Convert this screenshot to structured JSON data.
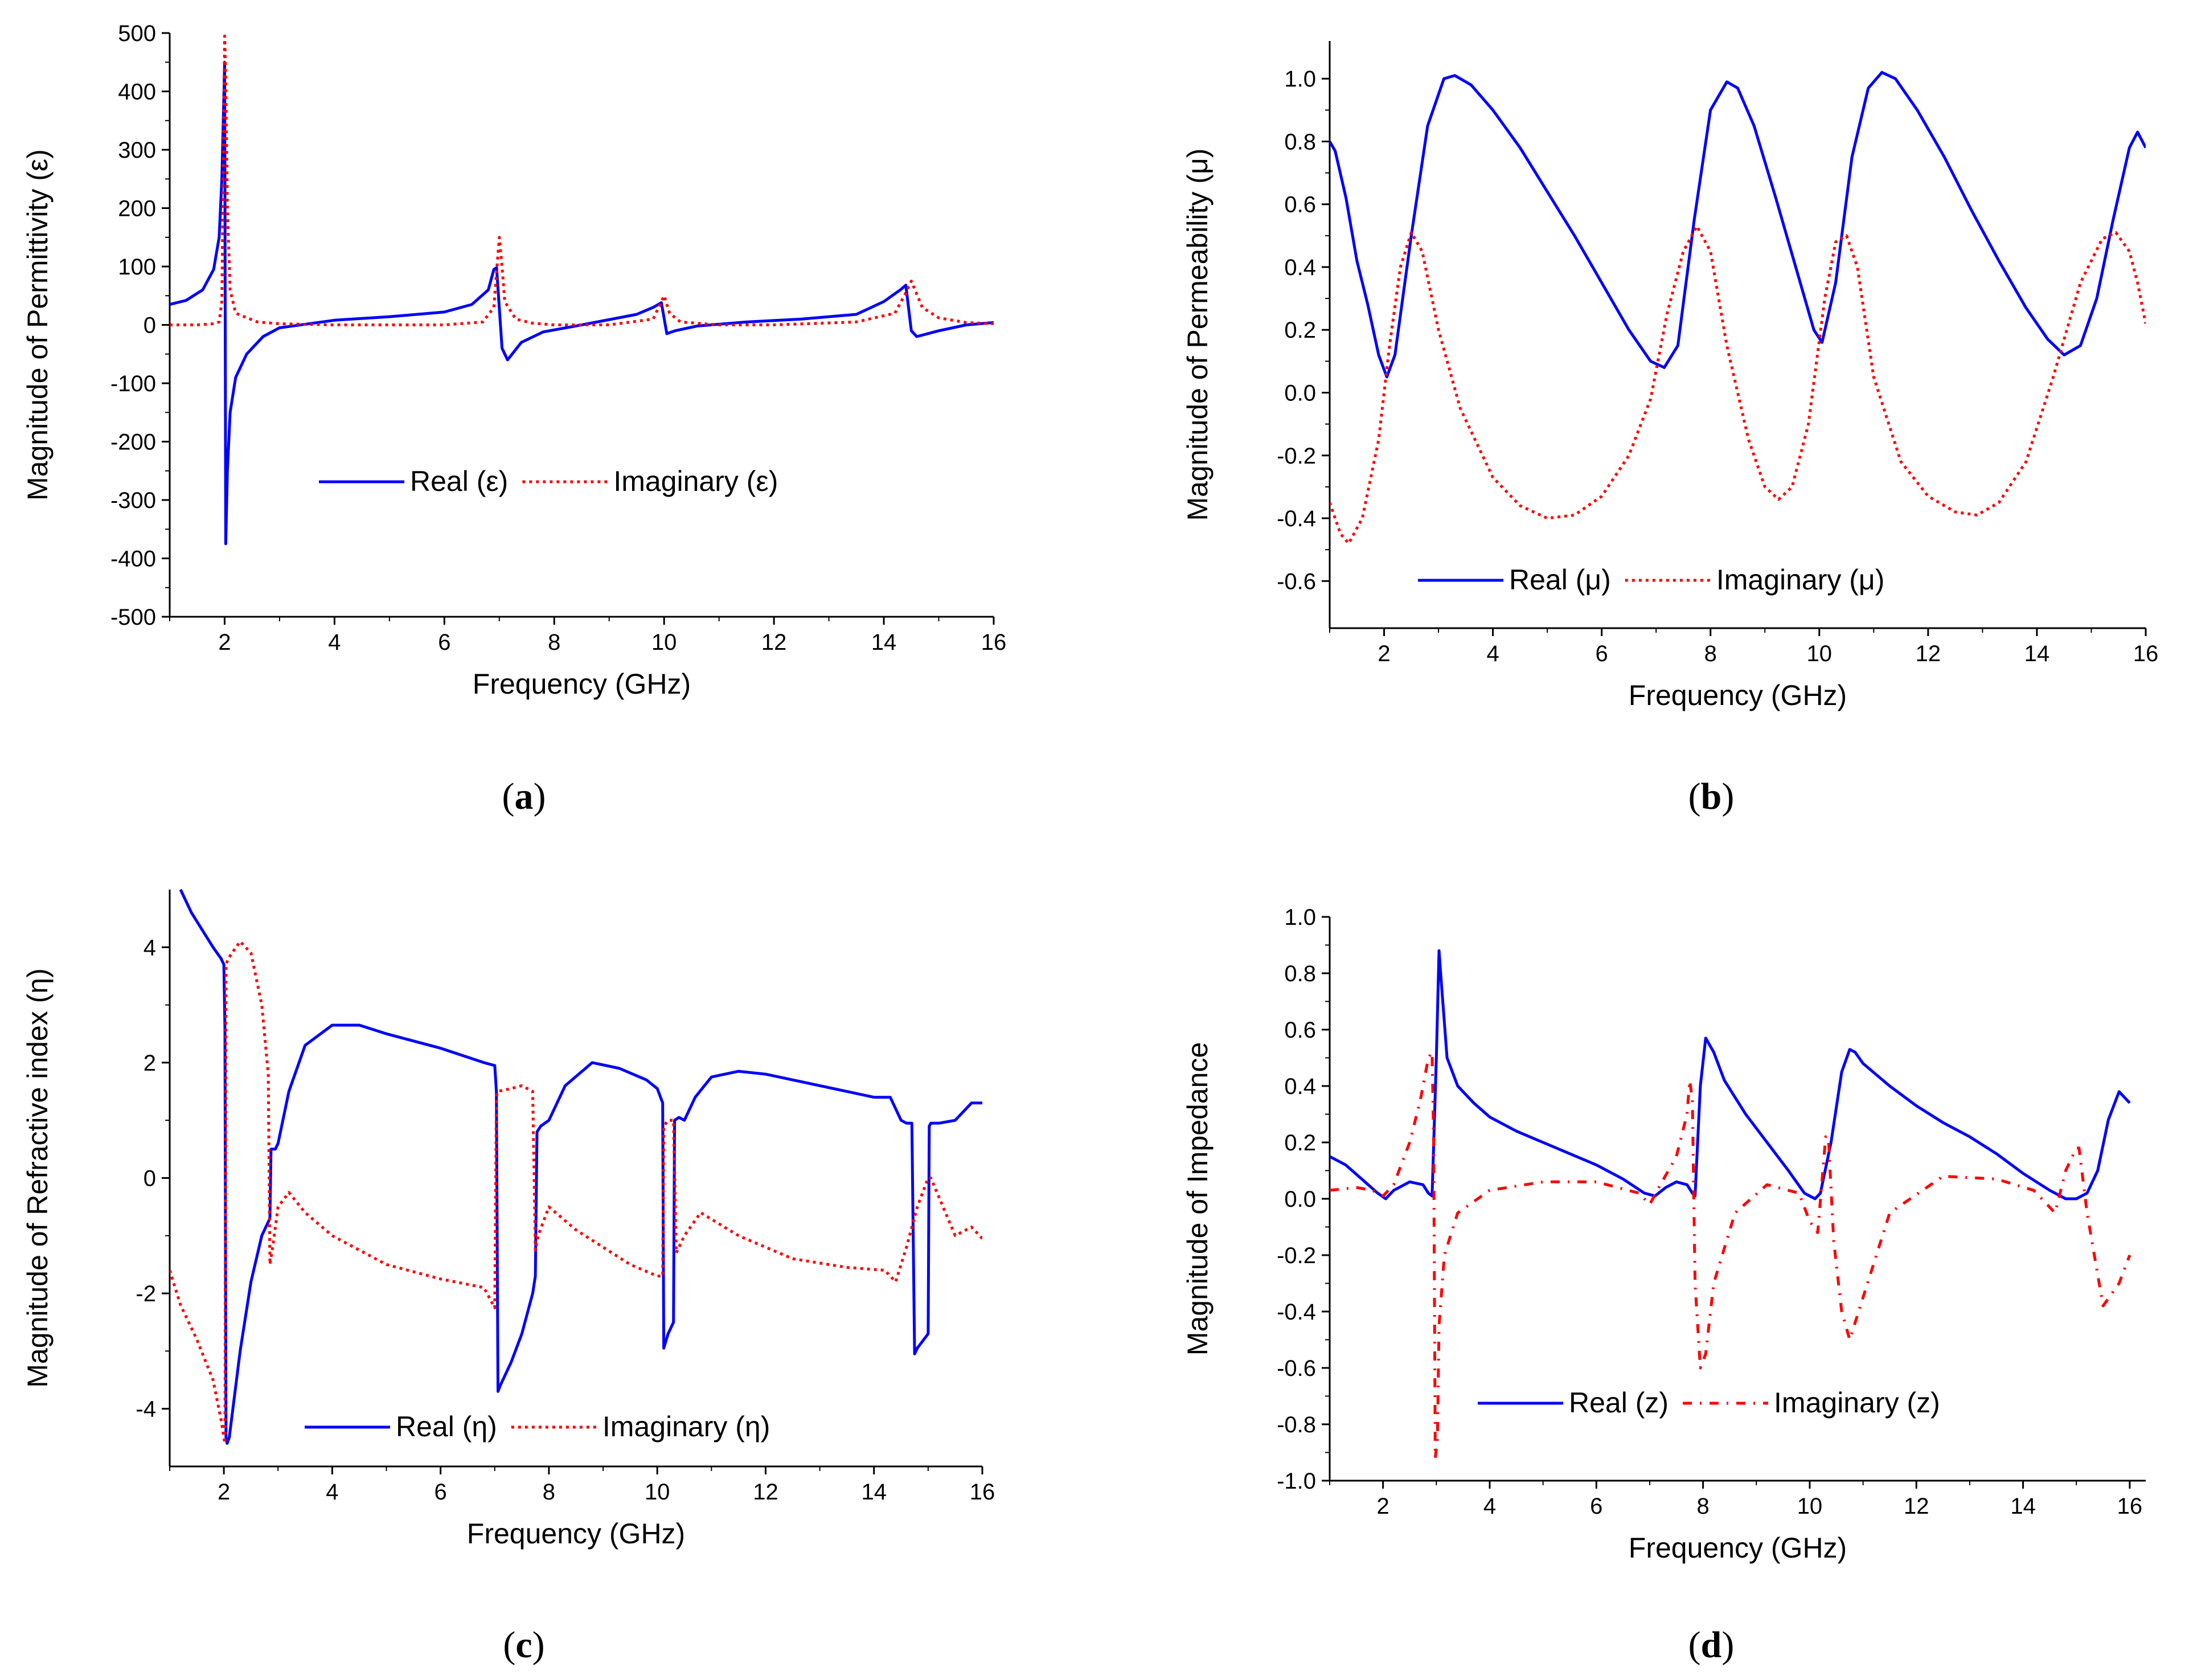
{
  "colors": {
    "real": "#0000ff",
    "imaginary": "#ff0000",
    "axis": "#000000"
  },
  "chart_data": [
    {
      "id": "a",
      "type": "line",
      "caption_letter": "a",
      "xlabel": "Frequency (GHz)",
      "ylabel": "Magnitude of Permittivity (ε)",
      "xlim": [
        1,
        16
      ],
      "ylim": [
        -500,
        500
      ],
      "xticks": [
        2,
        4,
        6,
        8,
        10,
        12,
        14,
        16
      ],
      "yticks": [
        -500,
        -400,
        -300,
        -200,
        -100,
        0,
        100,
        200,
        300,
        400,
        500
      ],
      "legend_location": "center",
      "series": [
        {
          "name": "Real (ε)",
          "style": "solid",
          "color": "#0000ff",
          "x": [
            1,
            1.3,
            1.6,
            1.8,
            1.9,
            1.95,
            2.0,
            2.02,
            2.05,
            2.1,
            2.2,
            2.4,
            2.7,
            3.0,
            4,
            5,
            6,
            6.5,
            6.8,
            6.9,
            6.95,
            7.05,
            7.15,
            7.4,
            7.8,
            8.5,
            9.5,
            9.8,
            9.95,
            10.05,
            10.2,
            10.6,
            11.5,
            12.5,
            13.5,
            14.0,
            14.3,
            14.4,
            14.5,
            14.6,
            15.0,
            15.5,
            16
          ],
          "y": [
            35,
            42,
            60,
            95,
            150,
            250,
            450,
            -375,
            -250,
            -150,
            -90,
            -50,
            -20,
            -5,
            8,
            14,
            22,
            35,
            60,
            95,
            98,
            -40,
            -60,
            -30,
            -12,
            0,
            18,
            30,
            38,
            -15,
            -10,
            -2,
            5,
            10,
            18,
            40,
            60,
            68,
            -10,
            -20,
            -10,
            0,
            4
          ]
        },
        {
          "name": "Imaginary (ε)",
          "style": "dotted",
          "color": "#ff0000",
          "x": [
            1,
            1.5,
            1.8,
            1.9,
            1.95,
            2.0,
            2.02,
            2.05,
            2.1,
            2.2,
            2.6,
            3.0,
            4,
            5,
            6,
            6.7,
            6.9,
            7.0,
            7.05,
            7.1,
            7.3,
            7.6,
            8,
            9,
            9.8,
            10.0,
            10.1,
            10.3,
            11,
            12,
            13.5,
            14.2,
            14.4,
            14.5,
            14.7,
            15.0,
            15.5,
            16
          ],
          "y": [
            0,
            0,
            2,
            5,
            40,
            495,
            420,
            200,
            60,
            20,
            5,
            2,
            0,
            0,
            0,
            5,
            30,
            150,
            100,
            40,
            10,
            3,
            0,
            0,
            10,
            50,
            20,
            5,
            0,
            0,
            5,
            20,
            55,
            75,
            30,
            12,
            4,
            2
          ]
        }
      ]
    },
    {
      "id": "b",
      "type": "line",
      "caption_letter": "b",
      "xlabel": "Frequency (GHz)",
      "ylabel": "Magnitude of Permeability (μ)",
      "xlim": [
        1,
        16
      ],
      "ylim": [
        -0.75,
        1.12
      ],
      "xticks": [
        2,
        4,
        6,
        8,
        10,
        12,
        14,
        16
      ],
      "yticks": [
        -0.6,
        -0.4,
        -0.2,
        0.0,
        0.2,
        0.4,
        0.6,
        0.8,
        1.0
      ],
      "ytick_labels": [
        "-0.6",
        "-0.4",
        "-0.2",
        "0.0",
        "0.2",
        "0.4",
        "0.6",
        "0.8",
        "1.0"
      ],
      "legend_location": "lower center",
      "series": [
        {
          "name": "Real (μ)",
          "style": "solid",
          "color": "#0000ff",
          "x": [
            1,
            1.1,
            1.3,
            1.5,
            1.7,
            1.9,
            2.05,
            2.2,
            2.5,
            2.8,
            3.1,
            3.3,
            3.6,
            4.0,
            4.5,
            5.0,
            5.5,
            6.0,
            6.5,
            6.9,
            7.15,
            7.4,
            7.7,
            8.0,
            8.3,
            8.5,
            8.8,
            9.2,
            9.6,
            9.9,
            10.05,
            10.3,
            10.6,
            10.9,
            11.15,
            11.4,
            11.8,
            12.3,
            12.8,
            13.3,
            13.8,
            14.2,
            14.5,
            14.8,
            15.1,
            15.4,
            15.7,
            15.85,
            16
          ],
          "y": [
            0.8,
            0.77,
            0.62,
            0.42,
            0.28,
            0.12,
            0.05,
            0.12,
            0.5,
            0.85,
            1.0,
            1.01,
            0.98,
            0.9,
            0.78,
            0.64,
            0.5,
            0.35,
            0.2,
            0.1,
            0.08,
            0.15,
            0.55,
            0.9,
            0.99,
            0.97,
            0.85,
            0.62,
            0.38,
            0.2,
            0.16,
            0.35,
            0.75,
            0.97,
            1.02,
            1.0,
            0.9,
            0.75,
            0.58,
            0.42,
            0.27,
            0.17,
            0.12,
            0.15,
            0.3,
            0.55,
            0.78,
            0.83,
            0.78
          ]
        },
        {
          "name": "Imaginary (μ)",
          "style": "dotted",
          "color": "#ff0000",
          "x": [
            1,
            1.2,
            1.35,
            1.6,
            1.9,
            2.1,
            2.3,
            2.5,
            2.7,
            3.0,
            3.4,
            4.0,
            4.5,
            5.0,
            5.5,
            6.0,
            6.5,
            6.9,
            7.2,
            7.5,
            7.75,
            8.0,
            8.3,
            8.7,
            9.0,
            9.25,
            9.5,
            9.8,
            10.1,
            10.3,
            10.5,
            10.7,
            11.0,
            11.5,
            12.0,
            12.5,
            12.9,
            13.3,
            13.8,
            14.3,
            14.8,
            15.2,
            15.45,
            15.7,
            15.85,
            16
          ],
          "y": [
            -0.35,
            -0.45,
            -0.48,
            -0.4,
            -0.15,
            0.15,
            0.4,
            0.51,
            0.45,
            0.2,
            -0.05,
            -0.27,
            -0.36,
            -0.4,
            -0.39,
            -0.33,
            -0.2,
            -0.02,
            0.25,
            0.45,
            0.53,
            0.45,
            0.15,
            -0.15,
            -0.3,
            -0.34,
            -0.3,
            -0.1,
            0.3,
            0.48,
            0.5,
            0.4,
            0.05,
            -0.22,
            -0.33,
            -0.38,
            -0.39,
            -0.35,
            -0.22,
            0.05,
            0.35,
            0.49,
            0.51,
            0.45,
            0.35,
            0.22
          ]
        }
      ]
    },
    {
      "id": "c",
      "type": "line",
      "caption_letter": "c",
      "xlabel": "Frequency (GHz)",
      "ylabel": "Magnitude of Refractive index (η)",
      "xlim": [
        1,
        16
      ],
      "ylim": [
        -5,
        5
      ],
      "xticks": [
        2,
        4,
        6,
        8,
        10,
        12,
        14,
        16
      ],
      "yticks": [
        -4,
        -2,
        0,
        2,
        4
      ],
      "legend_location": "lower center",
      "series": [
        {
          "name": "Real (η)",
          "style": "solid",
          "color": "#0000ff",
          "x": [
            1.2,
            1.4,
            1.6,
            1.8,
            1.95,
            2.0,
            2.02,
            2.04,
            2.06,
            2.1,
            2.3,
            2.5,
            2.7,
            2.85,
            2.87,
            2.9,
            2.95,
            3.0,
            3.2,
            3.5,
            4.0,
            4.5,
            5.0,
            6.0,
            6.8,
            7.0,
            7.03,
            7.06,
            7.1,
            7.3,
            7.5,
            7.7,
            7.75,
            7.78,
            7.85,
            8.0,
            8.3,
            8.8,
            9.3,
            9.8,
            10.0,
            10.1,
            10.12,
            10.2,
            10.25,
            10.3,
            10.32,
            10.4,
            10.5,
            10.7,
            11.0,
            11.5,
            12.0,
            13.0,
            14.0,
            14.3,
            14.5,
            14.6,
            14.65,
            14.7,
            14.75,
            14.8,
            15.0,
            15.02,
            15.05,
            15.2,
            15.5,
            15.8,
            16
          ],
          "y": [
            5.0,
            4.6,
            4.3,
            4.0,
            3.8,
            3.7,
            2.6,
            -4.5,
            -4.6,
            -4.5,
            -3.0,
            -1.8,
            -1.0,
            -0.7,
            0.5,
            0.5,
            0.5,
            0.6,
            1.5,
            2.3,
            2.65,
            2.65,
            2.5,
            2.25,
            2.0,
            1.95,
            1.5,
            -3.7,
            -3.6,
            -3.2,
            -2.7,
            -2.0,
            -1.7,
            0.8,
            0.9,
            1.0,
            1.6,
            2.0,
            1.9,
            1.7,
            1.55,
            1.3,
            -2.95,
            -2.7,
            -2.6,
            -2.5,
            1.0,
            1.05,
            1.0,
            1.4,
            1.75,
            1.85,
            1.8,
            1.6,
            1.4,
            1.4,
            1.0,
            0.95,
            0.95,
            0.95,
            -3.05,
            -2.95,
            -2.7,
            0.9,
            0.95,
            0.95,
            1.0,
            1.3,
            1.3
          ]
        },
        {
          "name": "Imaginary (η)",
          "style": "dotted",
          "color": "#ff0000",
          "x": [
            1.0,
            1.2,
            1.5,
            1.8,
            1.95,
            2.0,
            2.02,
            2.04,
            2.08,
            2.15,
            2.3,
            2.5,
            2.7,
            2.82,
            2.85,
            2.9,
            3.0,
            3.2,
            3.5,
            4.0,
            5.0,
            6.0,
            6.8,
            7.0,
            7.03,
            7.05,
            7.3,
            7.5,
            7.7,
            7.75,
            7.8,
            8.0,
            8.5,
            9.5,
            10.0,
            10.1,
            10.12,
            10.2,
            10.3,
            10.35,
            10.5,
            10.8,
            11.5,
            12.5,
            13.5,
            14.2,
            14.4,
            14.6,
            14.8,
            15.0,
            15.05,
            15.5,
            15.8,
            16
          ],
          "y": [
            -1.6,
            -2.2,
            -2.8,
            -3.5,
            -4.2,
            -4.5,
            -4.6,
            3.7,
            3.8,
            3.9,
            4.1,
            3.9,
            3.0,
            1.8,
            -1.5,
            -1.2,
            -0.5,
            -0.25,
            -0.6,
            -1.0,
            -1.5,
            -1.75,
            -1.9,
            -2.25,
            1.4,
            1.5,
            1.55,
            1.6,
            1.5,
            -1.25,
            -1.0,
            -0.5,
            -0.9,
            -1.5,
            -1.7,
            -1.7,
            0.9,
            1.0,
            1.0,
            -1.3,
            -1.0,
            -0.6,
            -1.0,
            -1.4,
            -1.55,
            -1.6,
            -1.8,
            -1.2,
            -0.5,
            0.0,
            0.0,
            -1.0,
            -0.85,
            -1.05
          ]
        }
      ]
    },
    {
      "id": "d",
      "type": "line",
      "caption_letter": "d",
      "xlabel": "Frequency (GHz)",
      "ylabel": "Magnitude of Impedance",
      "xlim": [
        1,
        16.3
      ],
      "ylim": [
        -1.0,
        1.0
      ],
      "xticks": [
        2,
        4,
        6,
        8,
        10,
        12,
        14,
        16
      ],
      "yticks": [
        -1.0,
        -0.8,
        -0.6,
        -0.4,
        -0.2,
        0.0,
        0.2,
        0.4,
        0.6,
        0.8,
        1.0
      ],
      "ytick_labels": [
        "-1.0",
        "-0.8",
        "-0.6",
        "-0.4",
        "-0.2",
        "0.0",
        "0.2",
        "0.4",
        "0.6",
        "0.8",
        "1.0"
      ],
      "legend_location": "lower center",
      "series": [
        {
          "name": "Real (z)",
          "style": "solid",
          "color": "#0000ff",
          "x": [
            1.0,
            1.3,
            1.6,
            1.9,
            2.05,
            2.2,
            2.5,
            2.75,
            2.85,
            2.92,
            3.0,
            3.05,
            3.1,
            3.2,
            3.4,
            3.7,
            4.0,
            4.5,
            5.0,
            5.5,
            6.0,
            6.5,
            6.9,
            7.1,
            7.3,
            7.5,
            7.7,
            7.8,
            7.85,
            7.95,
            8.05,
            8.2,
            8.4,
            8.8,
            9.2,
            9.6,
            9.9,
            10.1,
            10.2,
            10.4,
            10.6,
            10.75,
            10.85,
            11.0,
            11.5,
            12.0,
            12.5,
            13.0,
            13.5,
            14.0,
            14.5,
            14.8,
            15.0,
            15.2,
            15.4,
            15.6,
            15.8,
            16.0
          ],
          "y": [
            0.15,
            0.12,
            0.07,
            0.02,
            0.0,
            0.03,
            0.06,
            0.05,
            0.02,
            0.01,
            0.5,
            0.88,
            0.75,
            0.5,
            0.4,
            0.34,
            0.29,
            0.24,
            0.2,
            0.16,
            0.12,
            0.07,
            0.02,
            0.01,
            0.04,
            0.06,
            0.05,
            0.02,
            0.01,
            0.4,
            0.57,
            0.52,
            0.42,
            0.3,
            0.2,
            0.1,
            0.02,
            0.0,
            0.02,
            0.2,
            0.45,
            0.53,
            0.52,
            0.48,
            0.4,
            0.33,
            0.27,
            0.22,
            0.16,
            0.09,
            0.03,
            0.0,
            0.0,
            0.02,
            0.1,
            0.28,
            0.38,
            0.34
          ]
        },
        {
          "name": "Imaginary (z)",
          "style": "dashdot",
          "color": "#ff0000",
          "x": [
            1.0,
            1.5,
            1.8,
            2.0,
            2.2,
            2.5,
            2.7,
            2.85,
            2.92,
            2.95,
            2.98,
            3.02,
            3.05,
            3.15,
            3.4,
            4.0,
            5.0,
            6.0,
            6.8,
            7.0,
            7.2,
            7.5,
            7.7,
            7.75,
            7.8,
            7.85,
            7.95,
            8.05,
            8.2,
            8.6,
            9.2,
            9.8,
            10.0,
            10.15,
            10.3,
            10.35,
            10.45,
            10.6,
            10.75,
            11.0,
            11.5,
            12.5,
            13.5,
            14.2,
            14.6,
            14.8,
            15.0,
            15.05,
            15.2,
            15.5,
            15.8,
            16.0
          ],
          "y": [
            0.03,
            0.04,
            0.03,
            0.01,
            0.05,
            0.2,
            0.35,
            0.5,
            0.52,
            0.2,
            -0.92,
            -0.85,
            -0.45,
            -0.2,
            -0.05,
            0.03,
            0.06,
            0.06,
            0.02,
            -0.02,
            0.05,
            0.15,
            0.3,
            0.42,
            0.35,
            -0.3,
            -0.6,
            -0.55,
            -0.3,
            -0.05,
            0.05,
            0.02,
            -0.08,
            -0.12,
            0.22,
            0.22,
            -0.15,
            -0.4,
            -0.5,
            -0.35,
            -0.05,
            0.08,
            0.07,
            0.03,
            -0.05,
            0.1,
            0.18,
            0.18,
            -0.05,
            -0.38,
            -0.3,
            -0.2
          ]
        }
      ]
    }
  ]
}
